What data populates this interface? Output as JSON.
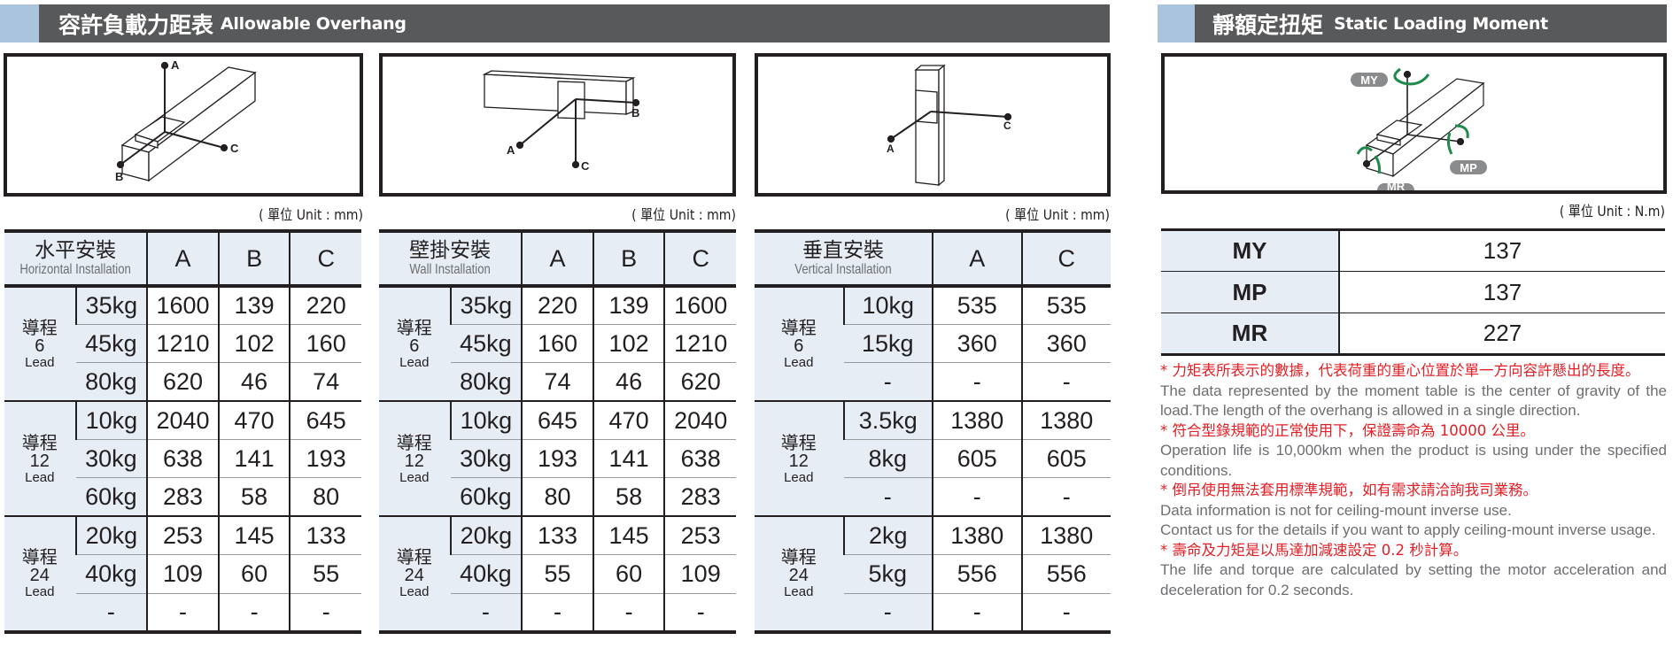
{
  "overhang": {
    "title_zh": "容許負載力距表",
    "title_en": "Allowable Overhang",
    "diagram_labels": [
      "A",
      "B",
      "C"
    ],
    "tables": [
      {
        "name_zh": "水平安裝",
        "name_en": "Horizontal Installation",
        "unit": "( 單位 Unit : mm)",
        "columns": [
          "A",
          "B",
          "C"
        ],
        "groups": [
          {
            "label_zh": "導程",
            "lead": "6",
            "lead_en": "Lead",
            "rows": [
              {
                "load": "35kg",
                "values": [
                  "1600",
                  "139",
                  "220"
                ]
              },
              {
                "load": "45kg",
                "values": [
                  "1210",
                  "102",
                  "160"
                ]
              },
              {
                "load": "80kg",
                "values": [
                  "620",
                  "46",
                  "74"
                ]
              }
            ]
          },
          {
            "label_zh": "導程",
            "lead": "12",
            "lead_en": "Lead",
            "rows": [
              {
                "load": "10kg",
                "values": [
                  "2040",
                  "470",
                  "645"
                ]
              },
              {
                "load": "30kg",
                "values": [
                  "638",
                  "141",
                  "193"
                ]
              },
              {
                "load": "60kg",
                "values": [
                  "283",
                  "58",
                  "80"
                ]
              }
            ]
          },
          {
            "label_zh": "導程",
            "lead": "24",
            "lead_en": "Lead",
            "rows": [
              {
                "load": "20kg",
                "values": [
                  "253",
                  "145",
                  "133"
                ]
              },
              {
                "load": "40kg",
                "values": [
                  "109",
                  "60",
                  "55"
                ]
              },
              {
                "load": "-",
                "values": [
                  "-",
                  "-",
                  "-"
                ]
              }
            ]
          }
        ]
      },
      {
        "name_zh": "壁掛安裝",
        "name_en": "Wall Installation",
        "unit": "( 單位 Unit : mm)",
        "columns": [
          "A",
          "B",
          "C"
        ],
        "groups": [
          {
            "label_zh": "導程",
            "lead": "6",
            "lead_en": "Lead",
            "rows": [
              {
                "load": "35kg",
                "values": [
                  "220",
                  "139",
                  "1600"
                ]
              },
              {
                "load": "45kg",
                "values": [
                  "160",
                  "102",
                  "1210"
                ]
              },
              {
                "load": "80kg",
                "values": [
                  "74",
                  "46",
                  "620"
                ]
              }
            ]
          },
          {
            "label_zh": "導程",
            "lead": "12",
            "lead_en": "Lead",
            "rows": [
              {
                "load": "10kg",
                "values": [
                  "645",
                  "470",
                  "2040"
                ]
              },
              {
                "load": "30kg",
                "values": [
                  "193",
                  "141",
                  "638"
                ]
              },
              {
                "load": "60kg",
                "values": [
                  "80",
                  "58",
                  "283"
                ]
              }
            ]
          },
          {
            "label_zh": "導程",
            "lead": "24",
            "lead_en": "Lead",
            "rows": [
              {
                "load": "20kg",
                "values": [
                  "133",
                  "145",
                  "253"
                ]
              },
              {
                "load": "40kg",
                "values": [
                  "55",
                  "60",
                  "109"
                ]
              },
              {
                "load": "-",
                "values": [
                  "-",
                  "-",
                  "-"
                ]
              }
            ]
          }
        ]
      },
      {
        "name_zh": "垂直安裝",
        "name_en": "Vertical Installation",
        "unit": "( 單位 Unit : mm)",
        "columns": [
          "A",
          "C"
        ],
        "groups": [
          {
            "label_zh": "導程",
            "lead": "6",
            "lead_en": "Lead",
            "rows": [
              {
                "load": "10kg",
                "values": [
                  "535",
                  "535"
                ]
              },
              {
                "load": "15kg",
                "values": [
                  "360",
                  "360"
                ]
              },
              {
                "load": "-",
                "values": [
                  "-",
                  "-"
                ]
              }
            ]
          },
          {
            "label_zh": "導程",
            "lead": "12",
            "lead_en": "Lead",
            "rows": [
              {
                "load": "3.5kg",
                "values": [
                  "1380",
                  "1380"
                ]
              },
              {
                "load": "8kg",
                "values": [
                  "605",
                  "605"
                ]
              },
              {
                "load": "-",
                "values": [
                  "-",
                  "-"
                ]
              }
            ]
          },
          {
            "label_zh": "導程",
            "lead": "24",
            "lead_en": "Lead",
            "rows": [
              {
                "load": "2kg",
                "values": [
                  "1380",
                  "1380"
                ]
              },
              {
                "load": "5kg",
                "values": [
                  "556",
                  "556"
                ]
              },
              {
                "load": "-",
                "values": [
                  "-",
                  "-"
                ]
              }
            ]
          }
        ]
      }
    ]
  },
  "moment": {
    "title_zh": "靜額定扭矩",
    "title_en": "Static Loading Moment",
    "unit": "( 單位 Unit : N.m)",
    "diagram_labels": [
      "MY",
      "MP",
      "MR"
    ],
    "rows": [
      {
        "key": "MY",
        "value": "137"
      },
      {
        "key": "MP",
        "value": "137"
      },
      {
        "key": "MR",
        "value": "227"
      }
    ],
    "notes": [
      {
        "zh": "* 力矩表所表示的數據，代表荷重的重心位置於單一方向容許懸出的長度。",
        "en": [
          "The data represented by the moment table is the center of gravity of the load.The length of the overhang is allowed in a single direction."
        ]
      },
      {
        "zh": "* 符合型錄規範的正常使用下，保證壽命為 10000 公里。",
        "en": [
          "Operation life is 10,000km when the product is using under the specified conditions."
        ]
      },
      {
        "zh": "* 倒吊使用無法套用標準規範，如有需求請洽詢我司業務。",
        "en": [
          "Data information is not for ceiling-mount inverse use.",
          "Contact us for the details if you want to apply ceiling-mount inverse usage."
        ]
      },
      {
        "zh": "* 壽命及力矩是以馬達加減速設定 0.2 秒計算。",
        "en": [
          "The life and torque are calculated by setting the motor acceleration and deceleration for 0.2 seconds."
        ]
      }
    ]
  },
  "colors": {
    "header_bg": "#58595b",
    "header_accent": "#a9c4dc",
    "cell_shade": "#e6edf4",
    "note_red": "#e31e24",
    "arrow_green": "#1f8a4c"
  }
}
